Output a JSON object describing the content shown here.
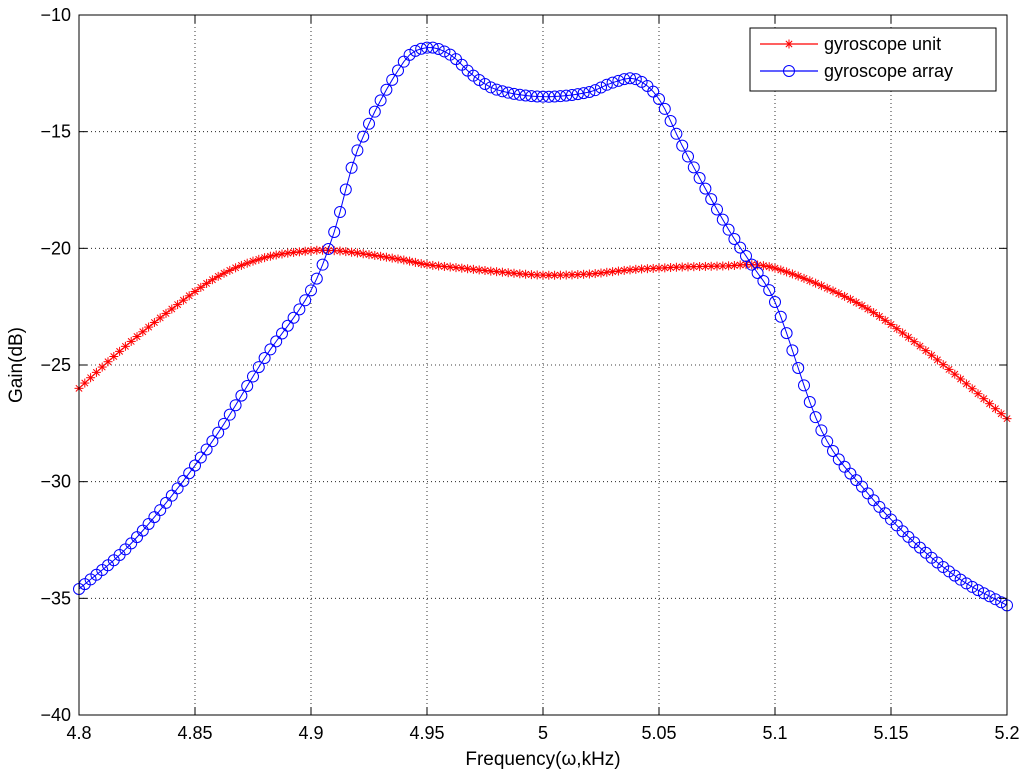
{
  "chart_data": {
    "type": "line",
    "title": "",
    "xlabel": "Frequency(ω,kHz)",
    "ylabel": "Gain(dB)",
    "xlim": [
      4.8,
      5.2
    ],
    "ylim": [
      -40,
      -10
    ],
    "xticks": [
      4.8,
      4.85,
      4.9,
      4.95,
      5.0,
      5.05,
      5.1,
      5.15,
      5.2
    ],
    "xtick_labels": [
      "4.8",
      "4.85",
      "4.9",
      "4.95",
      "5",
      "5.05",
      "5.1",
      "5.15",
      "5.2"
    ],
    "yticks": [
      -40,
      -35,
      -30,
      -25,
      -20,
      -15,
      -10
    ],
    "ytick_labels": [
      "−40",
      "−35",
      "−30",
      "−25",
      "−20",
      "−15",
      "−10"
    ],
    "grid": true,
    "legend_position": "top-right",
    "x": [
      4.8,
      4.82,
      4.84,
      4.86,
      4.88,
      4.9,
      4.91,
      4.92,
      4.94,
      4.95,
      4.96,
      4.97,
      4.98,
      5.0,
      5.02,
      5.03,
      5.04,
      5.05,
      5.06,
      5.08,
      5.09,
      5.1,
      5.12,
      5.14,
      5.16,
      5.18,
      5.2
    ],
    "series": [
      {
        "name": "gyroscope unit",
        "color": "#ff0000",
        "marker": "asterisk",
        "values": [
          -26.0,
          -24.2,
          -22.6,
          -21.2,
          -20.4,
          -20.1,
          -20.1,
          -20.2,
          -20.5,
          -20.7,
          -20.8,
          -20.9,
          -21.0,
          -21.15,
          -21.1,
          -21.0,
          -20.9,
          -20.85,
          -20.8,
          -20.75,
          -20.7,
          -20.85,
          -21.6,
          -22.6,
          -24.0,
          -25.6,
          -27.3
        ]
      },
      {
        "name": "gyroscope array",
        "color": "#0000ff",
        "marker": "circle",
        "values": [
          -34.6,
          -32.9,
          -30.6,
          -27.9,
          -24.7,
          -21.8,
          -19.3,
          -15.8,
          -12.0,
          -11.4,
          -11.7,
          -12.6,
          -13.2,
          -13.5,
          -13.3,
          -12.9,
          -12.75,
          -13.6,
          -15.6,
          -19.2,
          -20.7,
          -22.3,
          -27.8,
          -30.5,
          -32.6,
          -34.2,
          -35.3
        ]
      }
    ]
  },
  "colors": {
    "background": "#ffffff",
    "axes": "#000000",
    "grid": "#000000"
  }
}
